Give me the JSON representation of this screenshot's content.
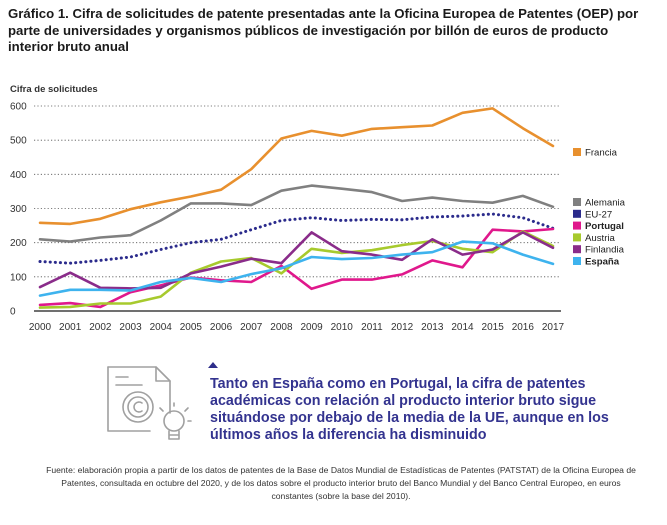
{
  "title": "Gráfico 1. Cifra de solicitudes de patente presentadas ante la Oficina Europea de Patentes (OEP) por parte de universidades y organismos públicos de investigación por billón de euros de producto interior bruto anual",
  "callout_text": "Tanto en España como en Portugal, la cifra de patentes académicas con relación al producto interior bruto sigue situándose por debajo de la media de la UE, aunque en los últimos años la diferencia ha disminuido",
  "source_text": "Fuente: elaboración propia a partir de los datos de patentes de la Base de Datos Mundial de Estadísticas de Patentes (PATSTAT) de la Oficina Europea de Patentes, consultada en octubre del 2020, y de los datos sobre el producto interior bruto del Banco Mundial y del Banco Central Europeo, en euros constantes (sobre la base del 2010).",
  "chart_data": {
    "type": "line",
    "ylabel": "Cifra de solicitudes",
    "xlabel": "",
    "ylim": [
      0,
      600
    ],
    "yticks": [
      0,
      100,
      200,
      300,
      400,
      500,
      600
    ],
    "x": [
      "2000",
      "2001",
      "2002",
      "2003",
      "2004",
      "2005",
      "2006",
      "2007",
      "2008",
      "2009",
      "2010",
      "2011",
      "2012",
      "2013",
      "2014",
      "2015",
      "2016",
      "2017"
    ],
    "grid": "horizontal-dotted",
    "legend_position": "right",
    "series": [
      {
        "name": "Francia",
        "color": "#e8902e",
        "style": "solid",
        "bold": false,
        "values": [
          258,
          255,
          270,
          298,
          318,
          335,
          355,
          415,
          505,
          527,
          513,
          533,
          538,
          543,
          580,
          593,
          535,
          483
        ]
      },
      {
        "name": "Alemania",
        "color": "#808080",
        "style": "solid",
        "bold": false,
        "values": [
          210,
          203,
          215,
          222,
          265,
          315,
          315,
          310,
          352,
          367,
          358,
          348,
          322,
          332,
          322,
          317,
          337,
          305
        ]
      },
      {
        "name": "EU-27",
        "color": "#2b2b8c",
        "style": "dotted",
        "bold": false,
        "values": [
          145,
          140,
          148,
          158,
          180,
          200,
          210,
          238,
          265,
          273,
          265,
          268,
          267,
          275,
          278,
          284,
          273,
          242
        ]
      },
      {
        "name": "Portugal",
        "color": "#e0188c",
        "style": "solid",
        "bold": true,
        "values": [
          18,
          23,
          12,
          55,
          75,
          98,
          90,
          85,
          132,
          65,
          92,
          92,
          107,
          148,
          128,
          238,
          233,
          240
        ]
      },
      {
        "name": "Austria",
        "color": "#a7ca2d",
        "style": "solid",
        "bold": false,
        "values": [
          10,
          12,
          22,
          22,
          42,
          112,
          145,
          155,
          110,
          182,
          170,
          178,
          193,
          205,
          182,
          172,
          233,
          190
        ]
      },
      {
        "name": "Finlandia",
        "color": "#8a2c8a",
        "style": "solid",
        "bold": false,
        "values": [
          70,
          112,
          68,
          66,
          68,
          110,
          130,
          153,
          140,
          230,
          175,
          165,
          150,
          210,
          165,
          180,
          230,
          185
        ]
      },
      {
        "name": "España",
        "color": "#3eb3ee",
        "style": "solid",
        "bold": true,
        "values": [
          45,
          62,
          62,
          60,
          85,
          97,
          85,
          108,
          125,
          158,
          152,
          155,
          165,
          172,
          203,
          198,
          165,
          138
        ]
      }
    ]
  }
}
